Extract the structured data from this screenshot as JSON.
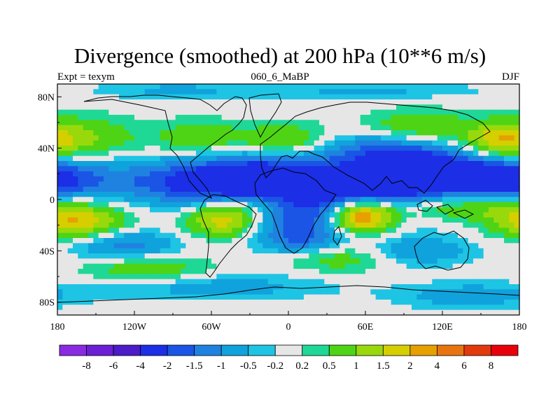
{
  "title": "Divergence (smoothed) at 200 hPa (10**6 m/s)",
  "left_subtitle": "Expt = texym",
  "center_subtitle": "060_6_MaBP",
  "right_subtitle": "DJF",
  "chart_data": {
    "type": "heatmap",
    "title": "Divergence (smoothed) at 200 hPa (10**6 m/s)",
    "projection": "cylindrical-equidistant",
    "lon_range": [
      -180,
      180
    ],
    "lat_range": [
      -90,
      90
    ],
    "x_ticks": [
      {
        "value": -180,
        "label": "180"
      },
      {
        "value": -120,
        "label": "120W"
      },
      {
        "value": -60,
        "label": "60W"
      },
      {
        "value": 0,
        "label": "0"
      },
      {
        "value": 60,
        "label": "60E"
      },
      {
        "value": 120,
        "label": "120E"
      },
      {
        "value": 180,
        "label": "180"
      }
    ],
    "y_ticks": [
      {
        "value": 80,
        "label": "80N"
      },
      {
        "value": 40,
        "label": "40N"
      },
      {
        "value": 0,
        "label": "0"
      },
      {
        "value": -40,
        "label": "40S"
      },
      {
        "value": -80,
        "label": "80S"
      }
    ],
    "colorbar": {
      "orientation": "horizontal",
      "position": "bottom",
      "levels": [
        "-8",
        "-6",
        "-4",
        "-2",
        "-1.5",
        "-1",
        "-0.5",
        "-0.2",
        "0.2",
        "0.5",
        "1",
        "1.5",
        "2",
        "4",
        "6",
        "8"
      ],
      "colors": [
        "#8a2be2",
        "#6b1fd6",
        "#4b1cc8",
        "#1c2ee6",
        "#1a55e6",
        "#1f82e0",
        "#10a2dc",
        "#1ec4e4",
        "#e6e6e6",
        "#1fd896",
        "#4ed414",
        "#99d90c",
        "#d6cf00",
        "#e6a000",
        "#e87410",
        "#e23a0c",
        "#e8000a"
      ]
    },
    "features": [
      {
        "lon": 15,
        "lat": -5,
        "value": -3.0,
        "s": 30,
        "r": 14
      },
      {
        "lon": 80,
        "lat": 5,
        "value": -3.0,
        "s": 40,
        "r": 14
      },
      {
        "lon": -100,
        "lat": 15,
        "value": -1.2,
        "s": 55,
        "r": 12
      },
      {
        "lon": 165,
        "lat": 15,
        "value": -2.4,
        "s": 30,
        "r": 12
      },
      {
        "lon": -40,
        "lat": 10,
        "value": -2.2,
        "s": 40,
        "r": 12
      },
      {
        "lon": -10,
        "lat": 25,
        "value": -1.3,
        "s": 40,
        "r": 10
      },
      {
        "lon": 90,
        "lat": 30,
        "value": -1.8,
        "s": 30,
        "r": 12
      },
      {
        "lon": 60,
        "lat": 40,
        "value": -0.8,
        "s": 35,
        "r": 10
      },
      {
        "lon": 130,
        "lat": 25,
        "value": -0.9,
        "s": 30,
        "r": 10
      },
      {
        "lon": -160,
        "lat": 48,
        "value": 1.0,
        "s": 28,
        "r": 12
      },
      {
        "lon": -70,
        "lat": 48,
        "value": 0.8,
        "s": 28,
        "r": 10
      },
      {
        "lon": 0,
        "lat": 45,
        "value": 1.1,
        "s": 25,
        "r": 10
      },
      {
        "lon": 100,
        "lat": 55,
        "value": 1.1,
        "s": 30,
        "r": 10
      },
      {
        "lon": 165,
        "lat": 45,
        "value": 1.7,
        "s": 20,
        "r": 10
      },
      {
        "lon": -165,
        "lat": -18,
        "value": 2.0,
        "s": 25,
        "r": 10
      },
      {
        "lon": -50,
        "lat": -15,
        "value": 2.0,
        "s": 20,
        "r": 10
      },
      {
        "lon": -5,
        "lat": -3,
        "value": 1.8,
        "s": 30,
        "r": 8
      },
      {
        "lon": 55,
        "lat": -12,
        "value": 3.8,
        "s": 20,
        "r": 10
      },
      {
        "lon": 120,
        "lat": -5,
        "value": 2.0,
        "s": 45,
        "r": 8
      },
      {
        "lon": -130,
        "lat": -35,
        "value": -1.3,
        "s": 30,
        "r": 8
      },
      {
        "lon": 10,
        "lat": -32,
        "value": -1.3,
        "s": 25,
        "r": 8
      },
      {
        "lon": 100,
        "lat": -40,
        "value": -1.0,
        "s": 30,
        "r": 8
      },
      {
        "lon": -110,
        "lat": -55,
        "value": 0.9,
        "s": 35,
        "r": 8
      },
      {
        "lon": 40,
        "lat": -45,
        "value": 0.9,
        "s": 30,
        "r": 8
      },
      {
        "lon": -60,
        "lat": -68,
        "value": -0.8,
        "s": 60,
        "r": 7
      },
      {
        "lon": 140,
        "lat": -75,
        "value": -0.8,
        "s": 40,
        "r": 7
      },
      {
        "lon": -90,
        "lat": 85,
        "value": -0.6,
        "s": 40,
        "r": 5
      },
      {
        "lon": 60,
        "lat": 85,
        "value": -0.6,
        "s": 60,
        "r": 5
      }
    ]
  }
}
